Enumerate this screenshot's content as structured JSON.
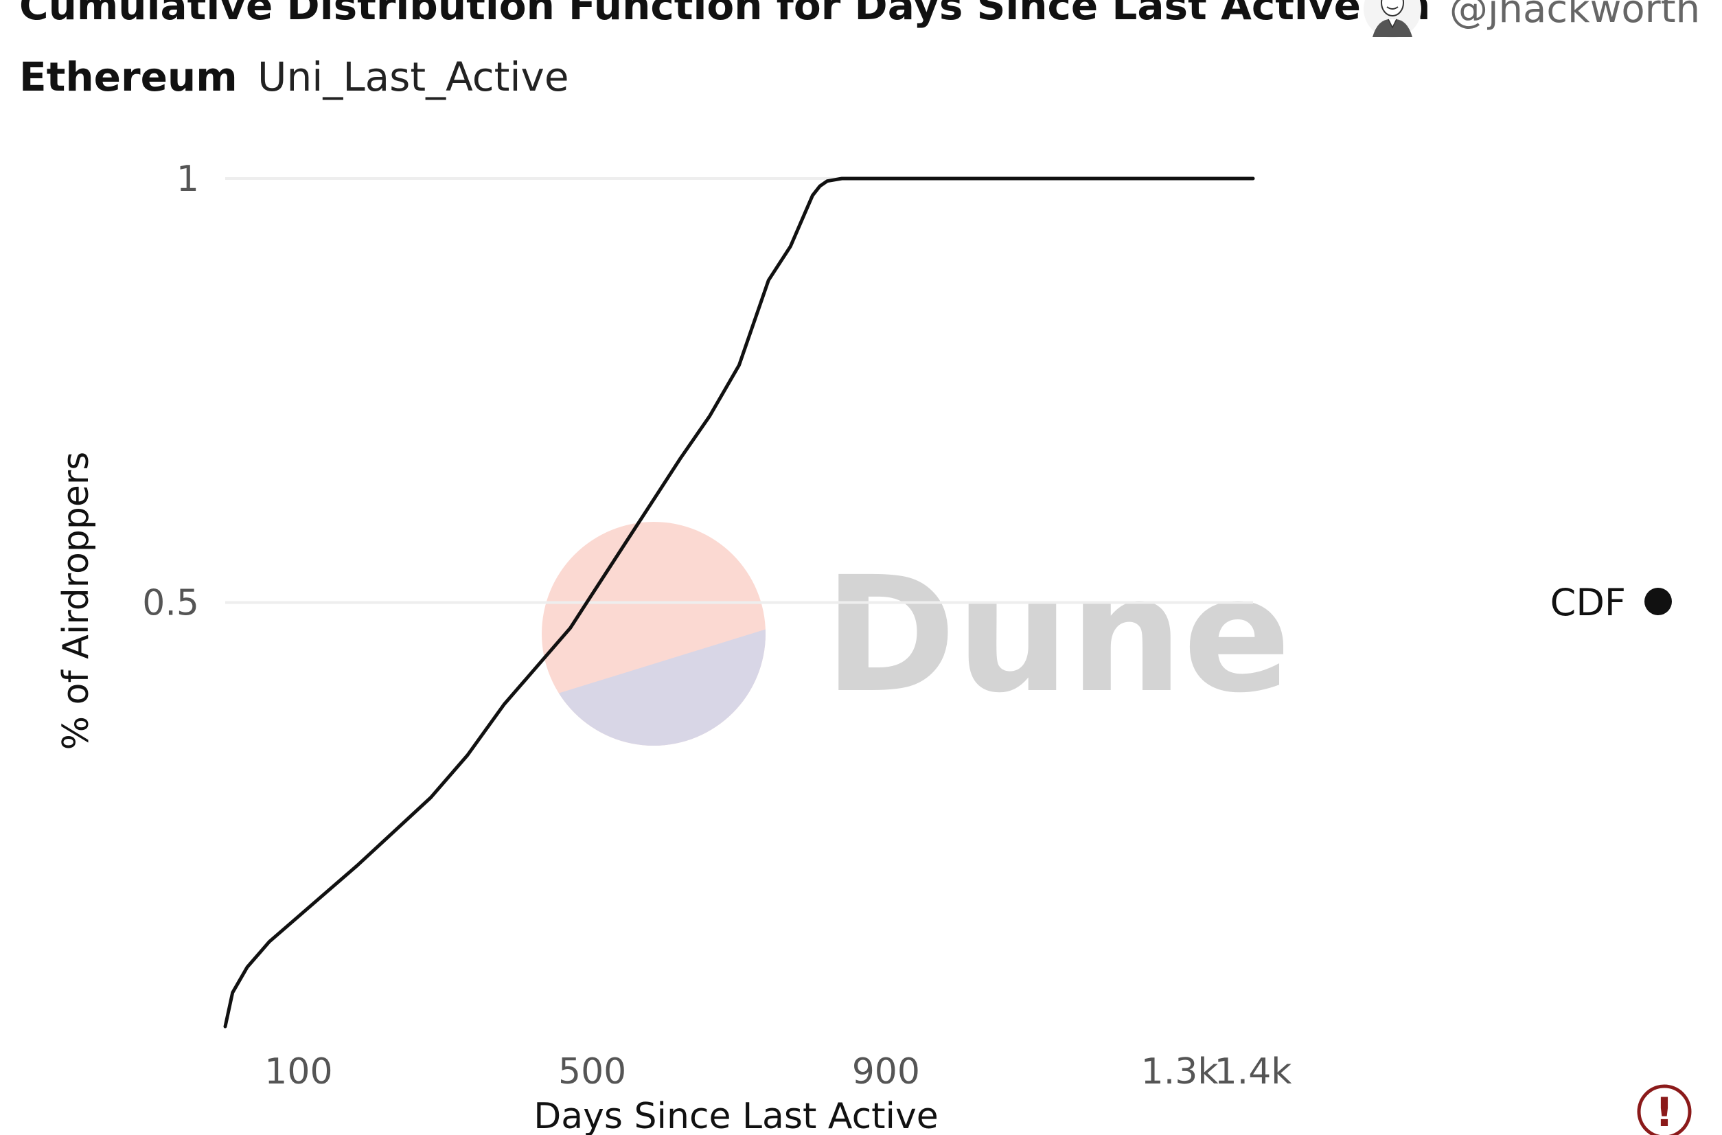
{
  "header": {
    "title_line1": "Cumulative Distribution Function for Days Since Last Active on",
    "title_line2": "Ethereum",
    "query_name": "Uni_Last_Active",
    "author": "@jhackworth"
  },
  "watermark": {
    "text": "Dune",
    "colors": {
      "top": "#fbd9d2",
      "bottom": "#d8d6e6"
    }
  },
  "colors": {
    "line": "#111111",
    "grid": "#eeeeee",
    "error": "#8b1a1a"
  },
  "error_icon": {
    "glyph": "!"
  },
  "chart_data": {
    "type": "line",
    "title": "",
    "xlabel": "Days Since Last Active",
    "ylabel": "% of Airdroppers",
    "x_ticks": [
      100,
      500,
      900,
      1300,
      1400
    ],
    "x_tick_labels": [
      "100",
      "500",
      "900",
      "1.3k",
      "1.4k"
    ],
    "y_ticks": [
      0.5,
      1
    ],
    "y_tick_labels": [
      "0.5",
      "1"
    ],
    "xlim": [
      0,
      1400
    ],
    "ylim": [
      0,
      1
    ],
    "grid": true,
    "legend": {
      "position": "right",
      "entries": [
        "CDF"
      ]
    },
    "series": [
      {
        "name": "CDF",
        "x": [
          0,
          10,
          30,
          60,
          100,
          140,
          180,
          230,
          280,
          330,
          380,
          430,
          470,
          500,
          530,
          560,
          590,
          620,
          660,
          700,
          740,
          770,
          790,
          800,
          810,
          820,
          840,
          860,
          880,
          900,
          930,
          960,
          1000,
          1050,
          1100,
          1150,
          1200,
          1250,
          1300,
          1350,
          1400
        ],
        "y": [
          0.0,
          0.04,
          0.07,
          0.1,
          0.13,
          0.16,
          0.19,
          0.23,
          0.27,
          0.32,
          0.38,
          0.43,
          0.47,
          0.51,
          0.55,
          0.59,
          0.63,
          0.67,
          0.72,
          0.78,
          0.88,
          0.92,
          0.96,
          0.98,
          0.991,
          0.997,
          1.0,
          1.0,
          1.0,
          1.0,
          1.0,
          1.0,
          1.0,
          1.0,
          1.0,
          1.0,
          1.0,
          1.0,
          1.0,
          1.0,
          1.0
        ]
      }
    ]
  }
}
